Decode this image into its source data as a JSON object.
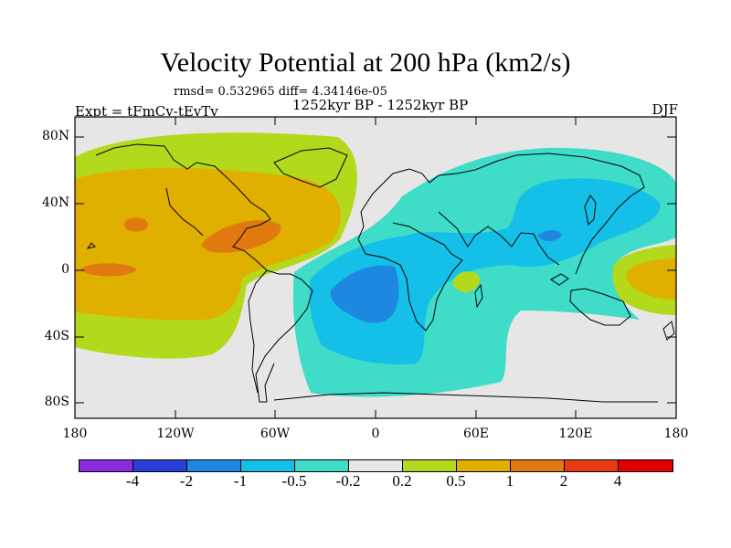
{
  "title": "Velocity Potential at 200 hPa (km2/s)",
  "stats": "rmsd= 0.532965 diff= 4.34146e-05",
  "period": "1252kyr BP - 1252kyr BP",
  "experiment": "Expt = tFmCv-tEvTv",
  "season": "DJF",
  "y_axis_labels": [
    "80N",
    "40N",
    "0",
    "40S",
    "80S"
  ],
  "x_axis_labels": [
    "180",
    "120W",
    "60W",
    "0",
    "60E",
    "120E",
    "180"
  ],
  "colorbar": {
    "labels": [
      "-4",
      "-2",
      "-1",
      "-0.5",
      "-0.2",
      "0.2",
      "0.5",
      "1",
      "2",
      "4"
    ],
    "colors": [
      "#8a2be2",
      "#2a3fd8",
      "#1e88e0",
      "#15c0e8",
      "#3fdcc8",
      "#e6e6e6",
      "#b3d91c",
      "#e0b000",
      "#e07a10",
      "#e83a10",
      "#e00000"
    ]
  },
  "field_colors": {
    "neutral": "#e6e6e6",
    "pos_02": "#b3d91c",
    "pos_05": "#e0b000",
    "pos_1": "#e07a10",
    "neg_02": "#3fdcc8",
    "neg_05": "#15c0e8",
    "neg_1": "#1e88e0"
  }
}
